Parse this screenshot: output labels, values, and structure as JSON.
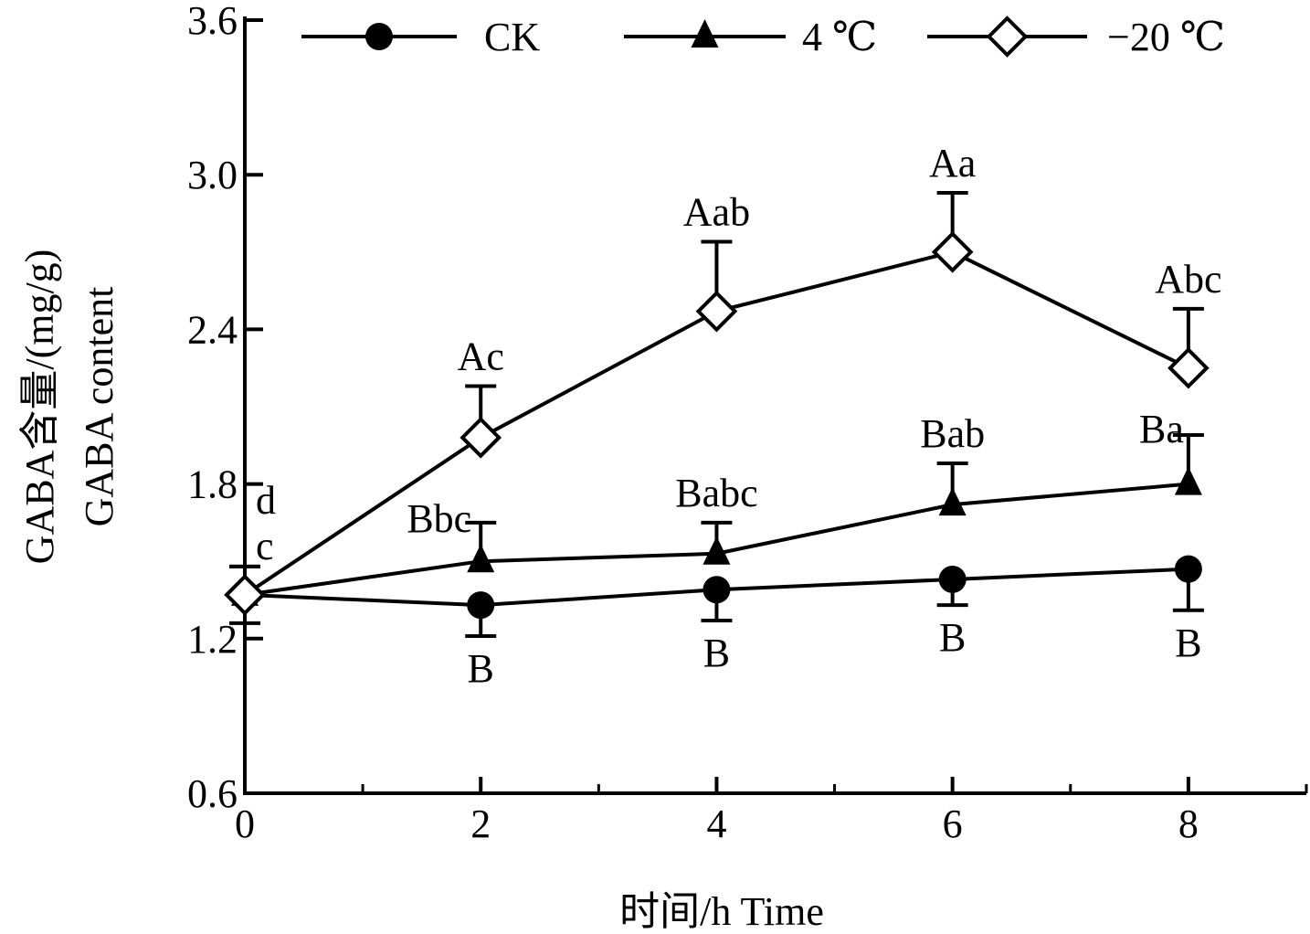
{
  "chart_data": {
    "type": "line",
    "title": "",
    "xlabel": "时间/h Time",
    "ylabel_line1": "GABA含量/(mg/g)",
    "ylabel_line2": "GABA content",
    "xlim": [
      0,
      9
    ],
    "ylim": [
      0.6,
      3.6
    ],
    "xticks": [
      0,
      2,
      4,
      6,
      8
    ],
    "xtick_labels": [
      "0",
      "2",
      "4",
      "6",
      "8"
    ],
    "yticks": [
      0.6,
      1.2,
      1.8,
      2.4,
      3.0,
      3.6
    ],
    "ytick_labels": [
      "0.6",
      "1.2",
      "1.8",
      "2.4",
      "3.0",
      "3.6"
    ],
    "grid": false,
    "legend_position": "top",
    "x": [
      0,
      2,
      4,
      6,
      8
    ],
    "series": [
      {
        "name": "CK",
        "marker": "filled-circle",
        "values": [
          1.37,
          1.33,
          1.39,
          1.43,
          1.47
        ],
        "errors": [
          0.11,
          0.12,
          0.12,
          0.1,
          0.16
        ],
        "labels": [
          "",
          "B",
          "B",
          "B",
          "B"
        ],
        "label_side": "below"
      },
      {
        "name": "4 ℃",
        "marker": "filled-triangle",
        "values": [
          1.37,
          1.5,
          1.53,
          1.72,
          1.8
        ],
        "errors": [
          0.11,
          0.15,
          0.12,
          0.16,
          0.19
        ],
        "labels": [
          "c",
          "Bbc",
          "Babc",
          "Bab",
          "Ba"
        ],
        "label_side": "above"
      },
      {
        "name": "−20 ℃",
        "marker": "open-diamond",
        "values": [
          1.37,
          1.98,
          2.47,
          2.7,
          2.25
        ],
        "errors": [
          0.11,
          0.2,
          0.27,
          0.23,
          0.23
        ],
        "labels": [
          "d",
          "Ac",
          "Aab",
          "Aa",
          "Abc"
        ],
        "label_side": "above"
      }
    ]
  }
}
